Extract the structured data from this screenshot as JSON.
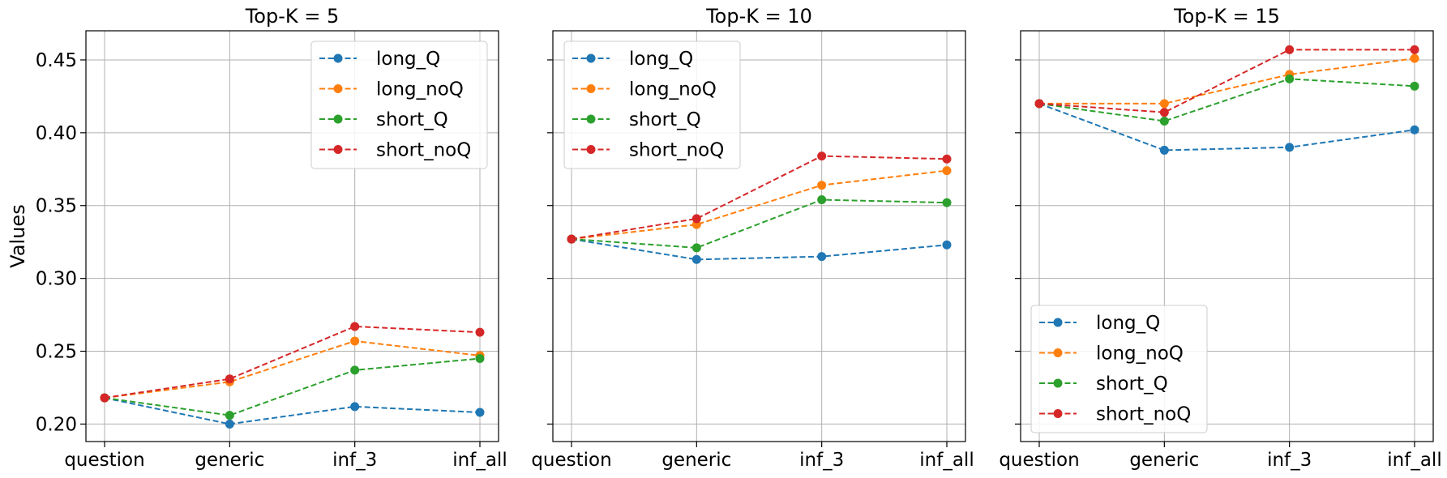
{
  "chart_data": [
    {
      "type": "line",
      "title": "Top-K = 5",
      "ylabel": "Values",
      "categories": [
        "question",
        "generic",
        "inf_3",
        "inf_all"
      ],
      "ylim": [
        0.188,
        0.47
      ],
      "yticks": [
        "0.20",
        "0.25",
        "0.30",
        "0.35",
        "0.40",
        "0.45"
      ],
      "grid": true,
      "legend": "top-right",
      "series": [
        {
          "name": "long_Q",
          "color": "#1f77b4",
          "values": [
            0.218,
            0.2,
            0.212,
            0.208
          ]
        },
        {
          "name": "long_noQ",
          "color": "#ff7f0e",
          "values": [
            0.218,
            0.229,
            0.257,
            0.247
          ]
        },
        {
          "name": "short_Q",
          "color": "#2ca02c",
          "values": [
            0.218,
            0.206,
            0.237,
            0.245
          ]
        },
        {
          "name": "short_noQ",
          "color": "#d62728",
          "values": [
            0.218,
            0.231,
            0.267,
            0.263
          ]
        }
      ]
    },
    {
      "type": "line",
      "title": "Top-K = 10",
      "categories": [
        "question",
        "generic",
        "inf_3",
        "inf_all"
      ],
      "ylim": [
        0.188,
        0.47
      ],
      "grid": true,
      "legend": "top-left",
      "series": [
        {
          "name": "long_Q",
          "color": "#1f77b4",
          "values": [
            0.327,
            0.313,
            0.315,
            0.323
          ]
        },
        {
          "name": "long_noQ",
          "color": "#ff7f0e",
          "values": [
            0.327,
            0.337,
            0.364,
            0.374
          ]
        },
        {
          "name": "short_Q",
          "color": "#2ca02c",
          "values": [
            0.327,
            0.321,
            0.354,
            0.352
          ]
        },
        {
          "name": "short_noQ",
          "color": "#d62728",
          "values": [
            0.327,
            0.341,
            0.384,
            0.382
          ]
        }
      ]
    },
    {
      "type": "line",
      "title": "Top-K = 15",
      "categories": [
        "question",
        "generic",
        "inf_3",
        "inf_all"
      ],
      "ylim": [
        0.188,
        0.47
      ],
      "grid": true,
      "legend": "bottom-left",
      "series": [
        {
          "name": "long_Q",
          "color": "#1f77b4",
          "values": [
            0.42,
            0.388,
            0.39,
            0.402
          ]
        },
        {
          "name": "long_noQ",
          "color": "#ff7f0e",
          "values": [
            0.42,
            0.42,
            0.44,
            0.451
          ]
        },
        {
          "name": "short_Q",
          "color": "#2ca02c",
          "values": [
            0.42,
            0.408,
            0.437,
            0.432
          ]
        },
        {
          "name": "short_noQ",
          "color": "#d62728",
          "values": [
            0.42,
            0.414,
            0.457,
            0.457
          ]
        }
      ]
    }
  ]
}
